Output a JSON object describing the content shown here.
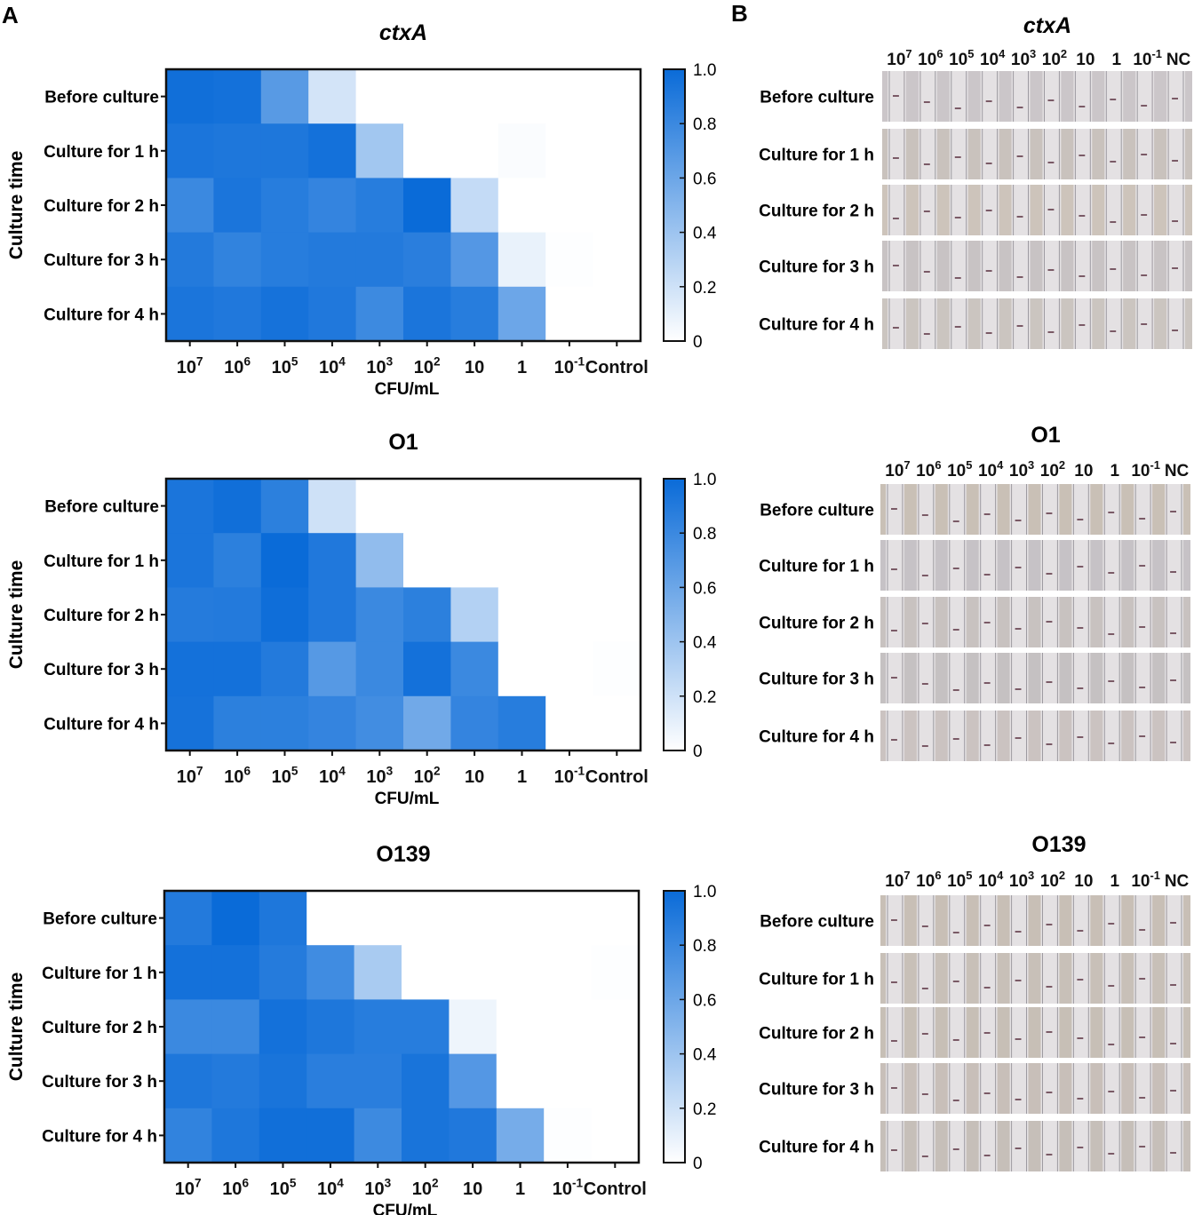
{
  "panel_labels": {
    "a": "A",
    "b": "B"
  },
  "colorbar_ticks": [
    "1.0",
    "0.8",
    "0.6",
    "0.4",
    "0.2",
    "0"
  ],
  "colors": {
    "high": "#0a6bd8",
    "low": "#ffffff",
    "frame": "#111111"
  },
  "chart_data": [
    {
      "type": "heatmap",
      "title": "ctxA",
      "xlabel": "CFU/mL",
      "ylabel": "Culture time",
      "x_categories": [
        {
          "base": "10",
          "exp": "7"
        },
        {
          "base": "10",
          "exp": "6"
        },
        {
          "base": "10",
          "exp": "5"
        },
        {
          "base": "10",
          "exp": "4"
        },
        {
          "base": "10",
          "exp": "3"
        },
        {
          "base": "10",
          "exp": "2"
        },
        {
          "base": "10",
          "exp": ""
        },
        {
          "base": "1",
          "exp": ""
        },
        {
          "base": "10",
          "exp": "-1"
        },
        {
          "base": "Control",
          "exp": ""
        }
      ],
      "y_categories": [
        "Before culture",
        "Culture for 1 h",
        "Culture for 2 h",
        "Culture for 3 h",
        "Culture for 4 h"
      ],
      "value_range": [
        0,
        1
      ],
      "values": [
        [
          0.97,
          0.96,
          0.68,
          0.18,
          0.0,
          0.0,
          0.0,
          0.0,
          0.0,
          0.0
        ],
        [
          0.93,
          0.92,
          0.92,
          0.96,
          0.38,
          0.0,
          0.0,
          0.02,
          0.0,
          0.0
        ],
        [
          0.8,
          0.93,
          0.88,
          0.83,
          0.88,
          1.0,
          0.24,
          0.0,
          0.0,
          0.0
        ],
        [
          0.9,
          0.84,
          0.88,
          0.9,
          0.9,
          0.87,
          0.7,
          0.09,
          0.01,
          0.0
        ],
        [
          0.93,
          0.91,
          0.95,
          0.91,
          0.79,
          0.93,
          0.88,
          0.6,
          0.0,
          0.0
        ]
      ]
    },
    {
      "type": "heatmap",
      "title": "O1",
      "xlabel": "CFU/mL",
      "ylabel": "Culture time",
      "x_categories": [
        {
          "base": "10",
          "exp": "7"
        },
        {
          "base": "10",
          "exp": "6"
        },
        {
          "base": "10",
          "exp": "5"
        },
        {
          "base": "10",
          "exp": "4"
        },
        {
          "base": "10",
          "exp": "3"
        },
        {
          "base": "10",
          "exp": "2"
        },
        {
          "base": "10",
          "exp": ""
        },
        {
          "base": "1",
          "exp": ""
        },
        {
          "base": "10",
          "exp": "-1"
        },
        {
          "base": "Control",
          "exp": ""
        }
      ],
      "y_categories": [
        "Before culture",
        "Culture for 1 h",
        "Culture for 2 h",
        "Culture for 3 h",
        "Culture for 4 h"
      ],
      "value_range": [
        0,
        1
      ],
      "values": [
        [
          0.93,
          0.97,
          0.86,
          0.2,
          0.0,
          0.0,
          0.0,
          0.0,
          0.0,
          0.0
        ],
        [
          0.93,
          0.86,
          1.0,
          0.91,
          0.45,
          0.0,
          0.0,
          0.0,
          0.0,
          0.0
        ],
        [
          0.89,
          0.9,
          0.98,
          0.91,
          0.8,
          0.86,
          0.31,
          0.0,
          0.0,
          0.0
        ],
        [
          0.96,
          0.96,
          0.9,
          0.69,
          0.8,
          0.96,
          0.8,
          0.0,
          0.0,
          0.01
        ],
        [
          0.95,
          0.86,
          0.86,
          0.83,
          0.77,
          0.58,
          0.83,
          0.88,
          0.0,
          0.0
        ]
      ]
    },
    {
      "type": "heatmap",
      "title": "O139",
      "xlabel": "CFU/mL",
      "ylabel": "Culture time",
      "x_categories": [
        {
          "base": "10",
          "exp": "7"
        },
        {
          "base": "10",
          "exp": "6"
        },
        {
          "base": "10",
          "exp": "5"
        },
        {
          "base": "10",
          "exp": "4"
        },
        {
          "base": "10",
          "exp": "3"
        },
        {
          "base": "10",
          "exp": "2"
        },
        {
          "base": "10",
          "exp": ""
        },
        {
          "base": "1",
          "exp": ""
        },
        {
          "base": "10",
          "exp": "-1"
        },
        {
          "base": "Control",
          "exp": ""
        }
      ],
      "y_categories": [
        "Before culture",
        "Culture for 1 h",
        "Culture for 2 h",
        "Culture for 3 h",
        "Culture for 4 h"
      ],
      "value_range": [
        0,
        1
      ],
      "values": [
        [
          0.9,
          1.0,
          0.92,
          0.0,
          0.0,
          0.0,
          0.0,
          0.0,
          0.0,
          0.0
        ],
        [
          0.96,
          0.96,
          0.89,
          0.78,
          0.35,
          0.0,
          0.0,
          0.0,
          0.0,
          0.01
        ],
        [
          0.8,
          0.8,
          0.96,
          0.92,
          0.88,
          0.88,
          0.07,
          0.0,
          0.0,
          0.0
        ],
        [
          0.92,
          0.9,
          0.94,
          0.87,
          0.87,
          0.94,
          0.7,
          0.0,
          0.0,
          0.0
        ],
        [
          0.84,
          0.92,
          0.97,
          0.97,
          0.79,
          0.94,
          0.91,
          0.56,
          0.01,
          0.0
        ]
      ]
    }
  ],
  "strip_panels": [
    {
      "title": "ctxA",
      "columns": [
        {
          "base": "10",
          "exp": "7"
        },
        {
          "base": "10",
          "exp": "6"
        },
        {
          "base": "10",
          "exp": "5"
        },
        {
          "base": "10",
          "exp": "4"
        },
        {
          "base": "10",
          "exp": "3"
        },
        {
          "base": "10",
          "exp": "2"
        },
        {
          "base": "10",
          "exp": ""
        },
        {
          "base": "1",
          "exp": ""
        },
        {
          "base": "10",
          "exp": "-1"
        },
        {
          "base": "NC",
          "exp": ""
        }
      ],
      "rows": [
        "Before culture",
        "Culture for 1 h",
        "Culture for 2 h",
        "Culture for 3 h",
        "Culture for 4 h"
      ]
    },
    {
      "title": "O1",
      "columns": [
        {
          "base": "10",
          "exp": "7"
        },
        {
          "base": "10",
          "exp": "6"
        },
        {
          "base": "10",
          "exp": "5"
        },
        {
          "base": "10",
          "exp": "4"
        },
        {
          "base": "10",
          "exp": "3"
        },
        {
          "base": "10",
          "exp": "2"
        },
        {
          "base": "10",
          "exp": ""
        },
        {
          "base": "1",
          "exp": ""
        },
        {
          "base": "10",
          "exp": "-1"
        },
        {
          "base": "NC",
          "exp": ""
        }
      ],
      "rows": [
        "Before culture",
        "Culture for 1 h",
        "Culture for 2 h",
        "Culture for 3 h",
        "Culture for 4 h"
      ]
    },
    {
      "title": "O139",
      "columns": [
        {
          "base": "10",
          "exp": "7"
        },
        {
          "base": "10",
          "exp": "6"
        },
        {
          "base": "10",
          "exp": "5"
        },
        {
          "base": "10",
          "exp": "4"
        },
        {
          "base": "10",
          "exp": "3"
        },
        {
          "base": "10",
          "exp": "2"
        },
        {
          "base": "10",
          "exp": ""
        },
        {
          "base": "1",
          "exp": ""
        },
        {
          "base": "10",
          "exp": "-1"
        },
        {
          "base": "NC",
          "exp": ""
        }
      ],
      "rows": [
        "Before culture",
        "Culture for 1 h",
        "Culture for 2 h",
        "Culture for 3 h",
        "Culture for 4 h"
      ]
    }
  ]
}
